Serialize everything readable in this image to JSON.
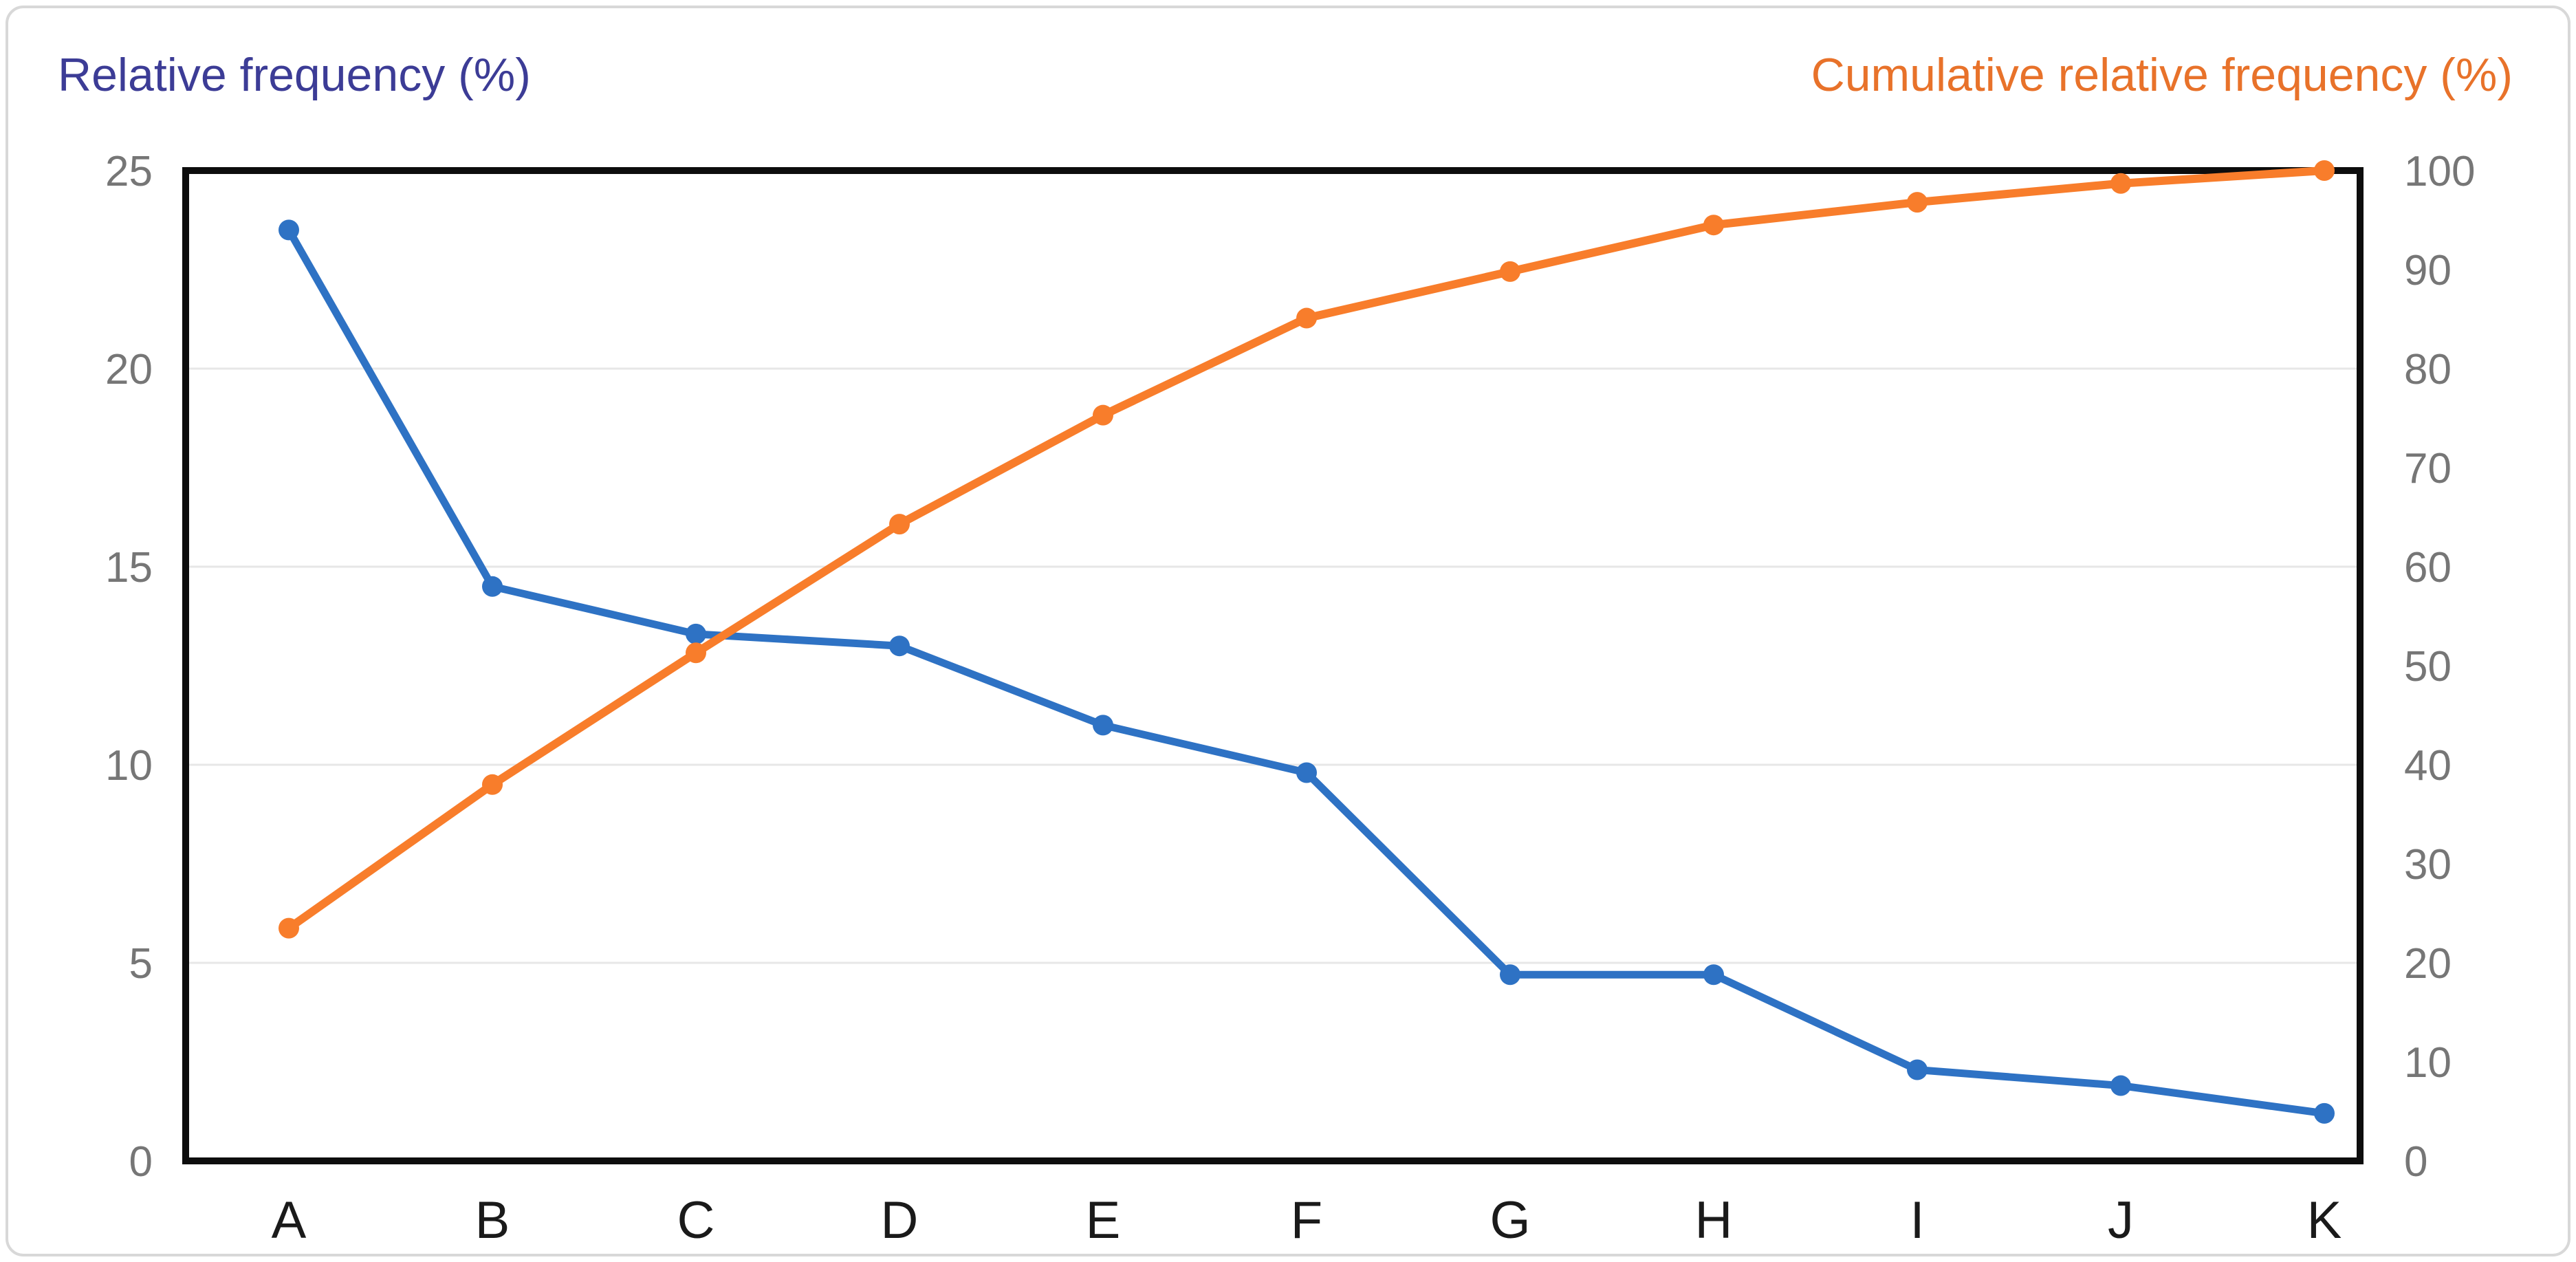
{
  "page": {
    "background": "#ffffff",
    "outer_border_color": "#d8d8d8"
  },
  "chart_data": {
    "type": "line",
    "categories": [
      "A",
      "B",
      "C",
      "D",
      "E",
      "F",
      "G",
      "H",
      "I",
      "J",
      "K"
    ],
    "series": [
      {
        "name": "Relative frequency (%)",
        "slug": "relative-frequency",
        "axis": "left",
        "color": "#2e72c4",
        "line_width": 11,
        "point_radius": 15,
        "values": [
          23.5,
          14.5,
          13.3,
          13.0,
          11.0,
          9.8,
          4.7,
          4.7,
          2.3,
          1.9,
          1.2
        ]
      },
      {
        "name": "Cumulative relative frequency (%)",
        "slug": "cumulative-relative-frequency",
        "axis": "right",
        "color": "#f87d2b",
        "line_width": 12,
        "point_radius": 15,
        "values": [
          23.5,
          38.0,
          51.3,
          64.3,
          75.3,
          85.1,
          89.8,
          94.5,
          96.8,
          98.7,
          100.0
        ]
      }
    ],
    "left_axis": {
      "title": "Relative frequency (%)",
      "title_color": "#3c3c96",
      "min": 0,
      "max": 25,
      "ticks": [
        0,
        5,
        10,
        15,
        20,
        25
      ],
      "tick_color": "#767676"
    },
    "right_axis": {
      "title": "Cumulative relative frequency (%)",
      "title_color": "#e8722a",
      "min": 0,
      "max": 100,
      "ticks": [
        0,
        10,
        20,
        30,
        40,
        50,
        60,
        70,
        80,
        90,
        100
      ],
      "tick_color": "#767676"
    },
    "x_axis": {
      "labels": [
        "A",
        "B",
        "C",
        "D",
        "E",
        "F",
        "G",
        "H",
        "I",
        "J",
        "K"
      ],
      "label_color": "#1a1a1a"
    },
    "grid": {
      "horizontal_lines_left_units": [
        5,
        10,
        15,
        20
      ],
      "color": "#e7e7e7",
      "width": 3
    },
    "plot_border": {
      "color": "#0d0d0d",
      "width": 10
    },
    "legend_position": "none"
  }
}
